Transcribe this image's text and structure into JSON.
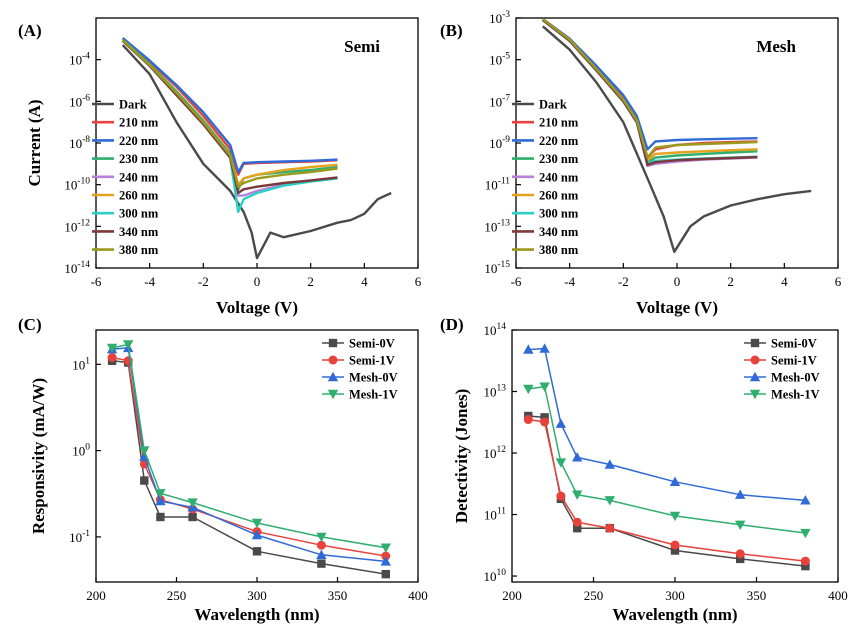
{
  "chart_data": [
    {
      "type": "line",
      "panel_label": "(A)",
      "corner_label": "Semi",
      "xlabel": "Voltage (V)",
      "ylabel": "Current (A)",
      "xlim": [
        -6,
        6
      ],
      "ylim": [
        1e-14,
        0.01
      ],
      "yscale": "log",
      "xticks": [
        "-6",
        "-4",
        "-2",
        "0",
        "2",
        "4",
        "6"
      ],
      "yticks": [
        {
          "v": 1e-14,
          "e": "-14"
        },
        {
          "v": 1e-12,
          "e": "-12"
        },
        {
          "v": 1e-10,
          "e": "-10"
        },
        {
          "v": 1e-08,
          "e": "-8"
        },
        {
          "v": 1e-06,
          "e": "-6"
        },
        {
          "v": 0.0001,
          "e": "-4"
        }
      ],
      "legend_position": "left",
      "series": [
        {
          "name": "Dark",
          "color": "#4a4a4a",
          "x": [
            -5,
            -4,
            -3,
            -2,
            -1,
            -0.5,
            -0.2,
            0,
            0.5,
            1,
            2,
            3,
            3.5,
            4,
            4.5,
            5
          ],
          "y": [
            0.0005,
            2e-05,
            1e-07,
            1e-09,
            5e-11,
            5e-12,
            5e-13,
            3e-14,
            5e-13,
            3e-13,
            6e-13,
            1.5e-12,
            2e-12,
            4e-12,
            2e-11,
            4e-11
          ]
        },
        {
          "name": "210 nm",
          "color": "#e8423a",
          "x": [
            -5,
            -4,
            -3,
            -2,
            -1,
            -0.7,
            -0.5,
            0,
            1,
            2,
            3
          ],
          "y": [
            0.001,
            8e-05,
            5e-06,
            2e-07,
            5e-09,
            3e-10,
            1e-09,
            1.1e-09,
            1.2e-09,
            1.3e-09,
            1.5e-09
          ]
        },
        {
          "name": "220 nm",
          "color": "#2f6ad6",
          "x": [
            -5,
            -4,
            -3,
            -2,
            -1,
            -0.7,
            -0.5,
            0,
            1,
            2,
            3
          ],
          "y": [
            0.0011,
            9e-05,
            6e-06,
            3e-07,
            8e-09,
            4e-10,
            1.1e-09,
            1.2e-09,
            1.3e-09,
            1.4e-09,
            1.6e-09
          ]
        },
        {
          "name": "230 nm",
          "color": "#2fae6e",
          "x": [
            -5,
            -4,
            -3,
            -2,
            -1,
            -0.7,
            -0.5,
            0,
            1,
            2,
            3
          ],
          "y": [
            0.0009,
            6e-05,
            3e-06,
            1.2e-07,
            3e-09,
            6e-11,
            2e-10,
            3e-10,
            4e-10,
            5e-10,
            7e-10
          ]
        },
        {
          "name": "240 nm",
          "color": "#b980d8",
          "x": [
            -5,
            -4,
            -3,
            -2,
            -1,
            -0.7,
            -0.5,
            0,
            1,
            2,
            3
          ],
          "y": [
            0.0008,
            5e-05,
            2e-06,
            8e-08,
            2e-09,
            3e-11,
            3e-11,
            5e-11,
            1e-10,
            1.5e-10,
            2e-10
          ]
        },
        {
          "name": "260 nm",
          "color": "#e5a21c",
          "x": [
            -5,
            -4,
            -3,
            -2,
            -1,
            -0.7,
            -0.5,
            0,
            1,
            2,
            3
          ],
          "y": [
            0.00085,
            5.5e-05,
            2.5e-06,
            1e-07,
            2.5e-09,
            1e-10,
            2e-10,
            3e-10,
            5e-10,
            7e-10,
            9e-10
          ]
        },
        {
          "name": "300 nm",
          "color": "#2bd1c8",
          "x": [
            -5,
            -4,
            -3,
            -2,
            -1,
            -0.7,
            -0.5,
            0,
            1,
            2,
            3
          ],
          "y": [
            0.0008,
            5e-05,
            2e-06,
            8e-08,
            2e-09,
            5e-12,
            2e-11,
            4e-11,
            9e-11,
            1.4e-10,
            2e-10
          ]
        },
        {
          "name": "340 nm",
          "color": "#7a3a3a",
          "x": [
            -5,
            -4,
            -3,
            -2,
            -1,
            -0.7,
            -0.5,
            0,
            1,
            2,
            3
          ],
          "y": [
            0.0008,
            5e-05,
            2e-06,
            8e-08,
            2e-09,
            4e-11,
            6e-11,
            8e-11,
            1.2e-10,
            1.6e-10,
            2.2e-10
          ]
        },
        {
          "name": "380 nm",
          "color": "#9a9a1e",
          "x": [
            -5,
            -4,
            -3,
            -2,
            -1,
            -0.7,
            -0.5,
            0,
            1,
            2,
            3
          ],
          "y": [
            0.00085,
            5.5e-05,
            2.5e-06,
            1e-07,
            2.5e-09,
            8e-11,
            1.2e-10,
            2e-10,
            3e-10,
            4e-10,
            6e-10
          ]
        }
      ]
    },
    {
      "type": "line",
      "panel_label": "(B)",
      "corner_label": "Mesh",
      "xlabel": "Voltage (V)",
      "ylabel": "",
      "xlim": [
        -6,
        6
      ],
      "ylim": [
        1e-15,
        0.001
      ],
      "yscale": "log",
      "xticks": [
        "-6",
        "-4",
        "-2",
        "0",
        "2",
        "4",
        "6"
      ],
      "yticks": [
        {
          "v": 1e-15,
          "e": "-15"
        },
        {
          "v": 1e-13,
          "e": "-13"
        },
        {
          "v": 1e-11,
          "e": "-11"
        },
        {
          "v": 1e-09,
          "e": "-9"
        },
        {
          "v": 1e-07,
          "e": "-7"
        },
        {
          "v": 1e-05,
          "e": "-5"
        },
        {
          "v": 0.001,
          "e": "-3"
        }
      ],
      "legend_position": "left",
      "series": [
        {
          "name": "Dark",
          "color": "#4a4a4a",
          "x": [
            -5,
            -4,
            -3,
            -2,
            -1,
            -0.5,
            -0.1,
            0.5,
            1,
            2,
            3,
            4,
            5
          ],
          "y": [
            0.0004,
            3e-05,
            8e-07,
            1e-08,
            1e-11,
            3e-13,
            6e-15,
            1e-13,
            3e-13,
            1e-12,
            2e-12,
            3.5e-12,
            5e-12
          ]
        },
        {
          "name": "210 nm",
          "color": "#e8423a",
          "x": [
            -5,
            -4,
            -3,
            -2,
            -1.5,
            -1.1,
            -0.8,
            0,
            1,
            2,
            3
          ],
          "y": [
            0.0009,
            0.0001,
            4e-06,
            1.5e-07,
            1.5e-08,
            2e-10,
            5e-10,
            8e-10,
            1e-09,
            1.1e-09,
            1.2e-09
          ]
        },
        {
          "name": "220 nm",
          "color": "#2f6ad6",
          "x": [
            -5,
            -4,
            -3,
            -2,
            -1.5,
            -1.1,
            -0.8,
            0,
            1,
            2,
            3
          ],
          "y": [
            0.0009,
            0.0001,
            5e-06,
            2e-07,
            2e-08,
            5e-10,
            1.2e-09,
            1.4e-09,
            1.5e-09,
            1.6e-09,
            1.7e-09
          ]
        },
        {
          "name": "230 nm",
          "color": "#2fae6e",
          "x": [
            -5,
            -4,
            -3,
            -2,
            -1.5,
            -1.1,
            -0.8,
            0,
            1,
            2,
            3
          ],
          "y": [
            0.00085,
            9e-05,
            3.5e-06,
            1.2e-07,
            1.2e-08,
            1.2e-10,
            2e-10,
            2.5e-10,
            3e-10,
            3.5e-10,
            4e-10
          ]
        },
        {
          "name": "240 nm",
          "color": "#b980d8",
          "x": [
            -5,
            -4,
            -3,
            -2,
            -1.5,
            -1.1,
            -0.8,
            0,
            1,
            2,
            3
          ],
          "y": [
            0.0008,
            8e-05,
            3e-06,
            1e-07,
            1e-08,
            8e-11,
            1e-10,
            1.3e-10,
            1.6e-10,
            1.8e-10,
            2e-10
          ]
        },
        {
          "name": "260 nm",
          "color": "#e5a21c",
          "x": [
            -5,
            -4,
            -3,
            -2,
            -1.5,
            -1.1,
            -0.8,
            0,
            1,
            2,
            3
          ],
          "y": [
            0.00085,
            9e-05,
            3.5e-06,
            1.2e-07,
            1.2e-08,
            1.5e-10,
            3e-10,
            3.5e-10,
            4e-10,
            4.5e-10,
            5e-10
          ]
        },
        {
          "name": "300 nm",
          "color": "#2bd1c8",
          "x": [
            -5,
            -4,
            -3,
            -2,
            -1.5,
            -1.1,
            -0.8,
            0,
            1,
            2,
            3
          ],
          "y": [
            0.0008,
            8e-05,
            3e-06,
            1e-07,
            1e-08,
            1e-10,
            1.4e-10,
            1.6e-10,
            1.8e-10,
            2e-10,
            2.2e-10
          ]
        },
        {
          "name": "340 nm",
          "color": "#7a3a3a",
          "x": [
            -5,
            -4,
            -3,
            -2,
            -1.5,
            -1.1,
            -0.8,
            0,
            1,
            2,
            3
          ],
          "y": [
            0.0008,
            8e-05,
            3e-06,
            1e-07,
            1e-08,
            9e-11,
            1.2e-10,
            1.5e-10,
            1.7e-10,
            1.9e-10,
            2.1e-10
          ]
        },
        {
          "name": "380 nm",
          "color": "#9a9a1e",
          "x": [
            -5,
            -4,
            -3,
            -2,
            -1.5,
            -1.1,
            -0.8,
            0,
            1,
            2,
            3
          ],
          "y": [
            0.0009,
            9e-05,
            3.5e-06,
            1.2e-07,
            1.2e-08,
            2e-10,
            6e-10,
            8e-10,
            9e-10,
            1e-09,
            1.1e-09
          ]
        }
      ]
    },
    {
      "type": "line",
      "panel_label": "(C)",
      "xlabel": "Wavelength (nm)",
      "ylabel": "Responsivity (mA/W)",
      "xlim": [
        200,
        400
      ],
      "ylim": [
        0.03,
        25
      ],
      "yscale": "log",
      "xticks": [
        "200",
        "250",
        "300",
        "350",
        "400"
      ],
      "yticks": [
        {
          "v": 0.1,
          "e": "-1"
        },
        {
          "v": 1,
          "e": "0"
        },
        {
          "v": 10,
          "e": "1"
        }
      ],
      "legend_position": "top-right",
      "x": [
        210,
        220,
        230,
        240,
        260,
        300,
        340,
        380
      ],
      "series": [
        {
          "name": "Semi-0V",
          "color": "#4a4a4a",
          "marker": "square",
          "values": [
            11,
            10.5,
            0.45,
            0.17,
            0.17,
            0.068,
            0.049,
            0.037
          ]
        },
        {
          "name": "Semi-1V",
          "color": "#e8423a",
          "marker": "circle",
          "values": [
            12,
            11,
            0.7,
            0.27,
            0.21,
            0.115,
            0.08,
            0.06
          ]
        },
        {
          "name": "Mesh-0V",
          "color": "#2f6ad6",
          "marker": "triangle-up",
          "values": [
            15,
            15.5,
            0.85,
            0.26,
            0.22,
            0.105,
            0.062,
            0.052
          ]
        },
        {
          "name": "Mesh-1V",
          "color": "#2fae6e",
          "marker": "triangle-down",
          "values": [
            15.5,
            17,
            1.0,
            0.32,
            0.25,
            0.145,
            0.1,
            0.075
          ]
        }
      ]
    },
    {
      "type": "line",
      "panel_label": "(D)",
      "xlabel": "Wavelength (nm)",
      "ylabel": "Detectivity (Jones)",
      "xlim": [
        200,
        400
      ],
      "ylim": [
        8000000000.0,
        100000000000000.0
      ],
      "yscale": "log",
      "xticks": [
        "200",
        "250",
        "300",
        "350",
        "400"
      ],
      "yticks": [
        {
          "v": 10000000000.0,
          "e": "10"
        },
        {
          "v": 100000000000.0,
          "e": "11"
        },
        {
          "v": 1000000000000.0,
          "e": "12"
        },
        {
          "v": 10000000000000.0,
          "e": "13"
        },
        {
          "v": 100000000000000.0,
          "e": "14"
        }
      ],
      "legend_position": "top-right",
      "x": [
        210,
        220,
        230,
        240,
        260,
        300,
        340,
        380
      ],
      "series": [
        {
          "name": "Semi-0V",
          "color": "#4a4a4a",
          "marker": "square",
          "values": [
            4000000000000.0,
            3800000000000.0,
            180000000000.0,
            60000000000.0,
            60000000000.0,
            26000000000.0,
            19000000000.0,
            14500000000.0
          ]
        },
        {
          "name": "Semi-1V",
          "color": "#e8423a",
          "marker": "circle",
          "values": [
            3500000000000.0,
            3200000000000.0,
            200000000000.0,
            75000000000.0,
            60000000000.0,
            32000000000.0,
            23000000000.0,
            17500000000.0
          ]
        },
        {
          "name": "Mesh-0V",
          "color": "#2f6ad6",
          "marker": "triangle-up",
          "values": [
            48000000000000.0,
            50000000000000.0,
            3000000000000.0,
            850000000000.0,
            650000000000.0,
            340000000000.0,
            210000000000.0,
            170000000000.0
          ]
        },
        {
          "name": "Mesh-1V",
          "color": "#2fae6e",
          "marker": "triangle-down",
          "values": [
            11000000000000.0,
            12000000000000.0,
            700000000000.0,
            210000000000.0,
            170000000000.0,
            95000000000.0,
            68000000000.0,
            50000000000.0
          ]
        }
      ]
    }
  ]
}
